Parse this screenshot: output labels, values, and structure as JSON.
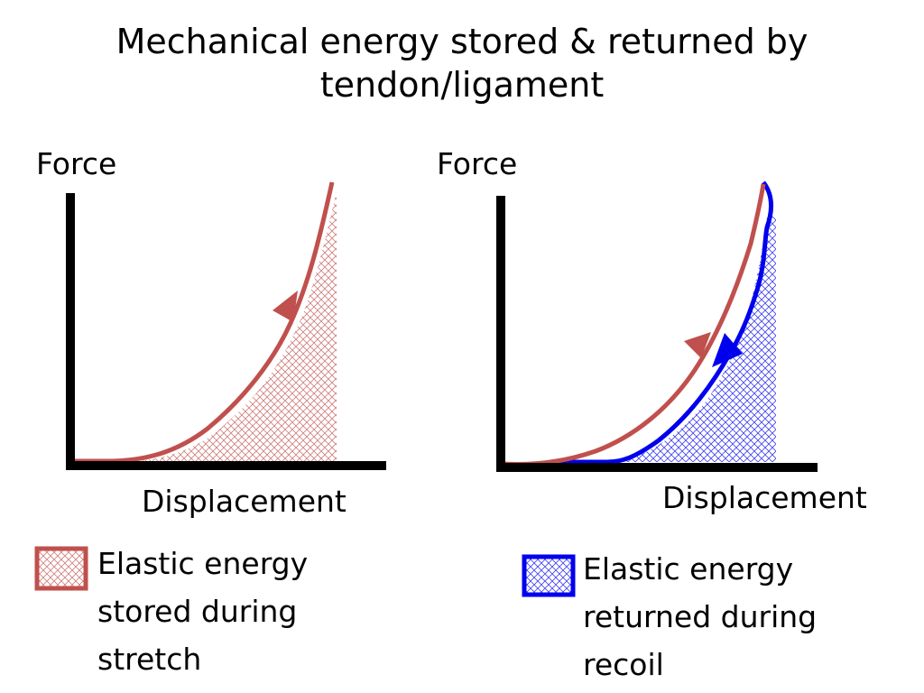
{
  "title": {
    "line1": "Mechanical energy stored & returned by",
    "line2": "tendon/ligament"
  },
  "left_graph": {
    "y_axis_label": "Force",
    "x_axis_label": "Displacement"
  },
  "right_graph": {
    "y_axis_label": "Force",
    "x_axis_label": "Displacement"
  },
  "legend": {
    "stored": {
      "lines": [
        "Elastic energy",
        "stored during",
        "stretch"
      ]
    },
    "returned": {
      "lines": [
        "Elastic energy",
        "returned during",
        "recoil"
      ]
    }
  },
  "colors": {
    "stretch": "#c0504d",
    "recoil": "#0000ee",
    "axes": "#000000"
  }
}
